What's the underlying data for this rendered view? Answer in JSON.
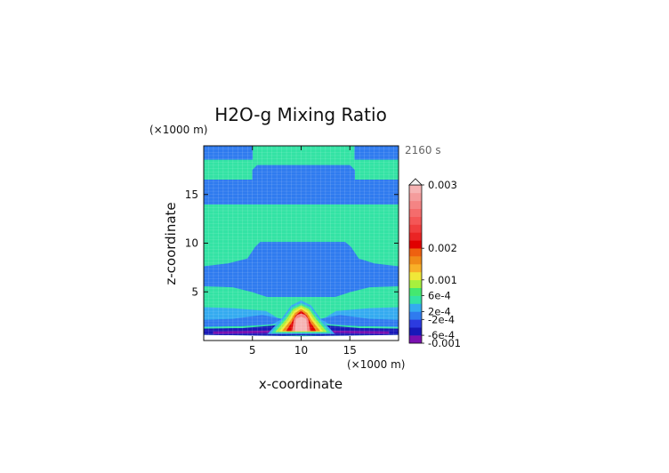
{
  "chart_data": {
    "type": "heatmap",
    "title": "H2O-g Mixing Ratio",
    "time_label": "2160 s",
    "x_axis": {
      "label": "x-coordinate",
      "unit_label": "(×1000 m)",
      "range": [
        0,
        20
      ],
      "ticks": [
        5,
        10,
        15
      ],
      "tick_labels": [
        "5",
        "10",
        "15"
      ]
    },
    "y_axis": {
      "label": "z-coordinate",
      "unit_label": "(×1000 m)",
      "range": [
        0,
        20
      ],
      "ticks": [
        5,
        10,
        15
      ],
      "tick_labels": [
        "5",
        "10",
        "15"
      ]
    },
    "colorbar": {
      "label_values": [
        0.003,
        0.002,
        0.001,
        0.0006,
        0.0002,
        -0.0002,
        -0.0006,
        -0.001
      ],
      "labels": [
        "0.003",
        "0.002",
        "0.001",
        "6e-4",
        "2e-4",
        "-2e-4",
        "-6e-4",
        "-0.001"
      ],
      "extend_top": true,
      "colors": [
        "#7a10b0",
        "#1818b8",
        "#2c3be0",
        "#2f7bef",
        "#34abf0",
        "#33e3a4",
        "#44e870",
        "#a8f03e",
        "#f0e838",
        "#f8b028",
        "#f08a18",
        "#ee6010",
        "#e00000",
        "#ea2424",
        "#f03e3e",
        "#f45656",
        "#f46c6c",
        "#f48484",
        "#f49c9c",
        "#f6b4b4"
      ]
    },
    "regions": {
      "background": "positive 0 to 2e-4 (green)",
      "bands": [
        {
          "z": [
            18.5,
            20
          ],
          "sign": "negative"
        },
        {
          "z": [
            14,
            16.5
          ],
          "sign": "negative"
        },
        {
          "z": [
            5.5,
            8
          ],
          "sign": "negative"
        },
        {
          "z": [
            0.6,
            1.0
          ],
          "sign": "strong negative"
        }
      ],
      "plume": {
        "x_center": 10,
        "z_top": 3.8,
        "max": 0.003
      }
    }
  }
}
